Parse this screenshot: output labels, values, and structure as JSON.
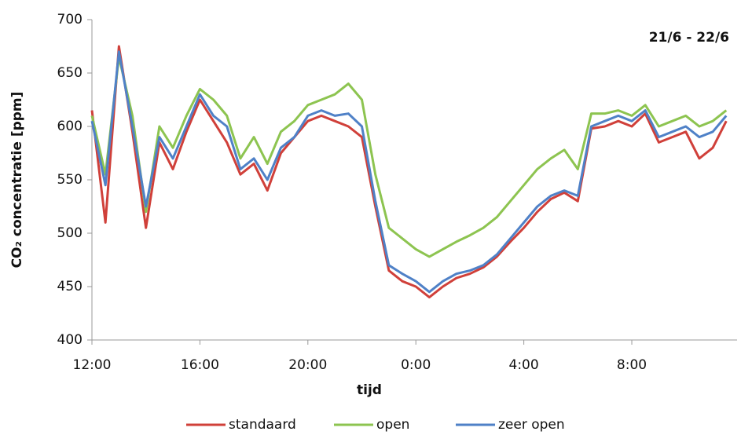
{
  "chart_data": {
    "type": "line",
    "annotation": "21/6 - 22/6",
    "x_label": "tijd",
    "y_label": "CO₂ concentratie [ppm]",
    "x": [
      0,
      0.5,
      1,
      1.5,
      2,
      2.5,
      3,
      3.5,
      4,
      4.5,
      5,
      5.5,
      6,
      6.5,
      7,
      7.5,
      8,
      8.5,
      9,
      9.5,
      10,
      10.5,
      11,
      11.5,
      12,
      12.5,
      13,
      13.5,
      14,
      14.5,
      15,
      15.5,
      16,
      16.5,
      17,
      17.5,
      18,
      18.5,
      19,
      19.5,
      20,
      20.5,
      21,
      21.5,
      22,
      22.5,
      23,
      23.5
    ],
    "series": [
      {
        "name": "standaard",
        "color": "#d0403a",
        "values": [
          615,
          510,
          675,
          595,
          505,
          585,
          560,
          595,
          625,
          605,
          585,
          555,
          565,
          540,
          575,
          590,
          605,
          610,
          605,
          600,
          590,
          525,
          465,
          455,
          450,
          440,
          450,
          458,
          462,
          468,
          478,
          492,
          505,
          520,
          532,
          538,
          530,
          598,
          600,
          605,
          600,
          612,
          585,
          590,
          595,
          570,
          580,
          605
        ]
      },
      {
        "name": "open",
        "color": "#8dc450",
        "values": [
          610,
          555,
          665,
          610,
          520,
          600,
          580,
          610,
          635,
          625,
          610,
          570,
          590,
          565,
          595,
          605,
          620,
          625,
          630,
          640,
          625,
          555,
          505,
          495,
          485,
          478,
          485,
          492,
          498,
          505,
          515,
          530,
          545,
          560,
          570,
          578,
          560,
          612,
          612,
          615,
          610,
          620,
          600,
          605,
          610,
          600,
          605,
          615
        ]
      },
      {
        "name": "zeer open",
        "color": "#4f81c7",
        "values": [
          605,
          545,
          670,
          600,
          525,
          590,
          570,
          600,
          630,
          610,
          600,
          560,
          570,
          550,
          580,
          590,
          610,
          615,
          610,
          612,
          600,
          530,
          470,
          462,
          455,
          445,
          455,
          462,
          465,
          470,
          480,
          495,
          510,
          525,
          535,
          540,
          535,
          600,
          605,
          610,
          605,
          615,
          590,
          595,
          600,
          590,
          595,
          610
        ]
      }
    ],
    "xlim": [
      0,
      23.9
    ],
    "xticks": [
      {
        "value": 0,
        "label": "12:00"
      },
      {
        "value": 4,
        "label": "16:00"
      },
      {
        "value": 8,
        "label": "20:00"
      },
      {
        "value": 12,
        "label": "0:00"
      },
      {
        "value": 16,
        "label": "4:00"
      },
      {
        "value": 20,
        "label": "8:00"
      }
    ],
    "ylim": [
      400,
      700
    ],
    "yticks": [
      400,
      450,
      500,
      550,
      600,
      650,
      700
    ],
    "legend": "bottom"
  }
}
